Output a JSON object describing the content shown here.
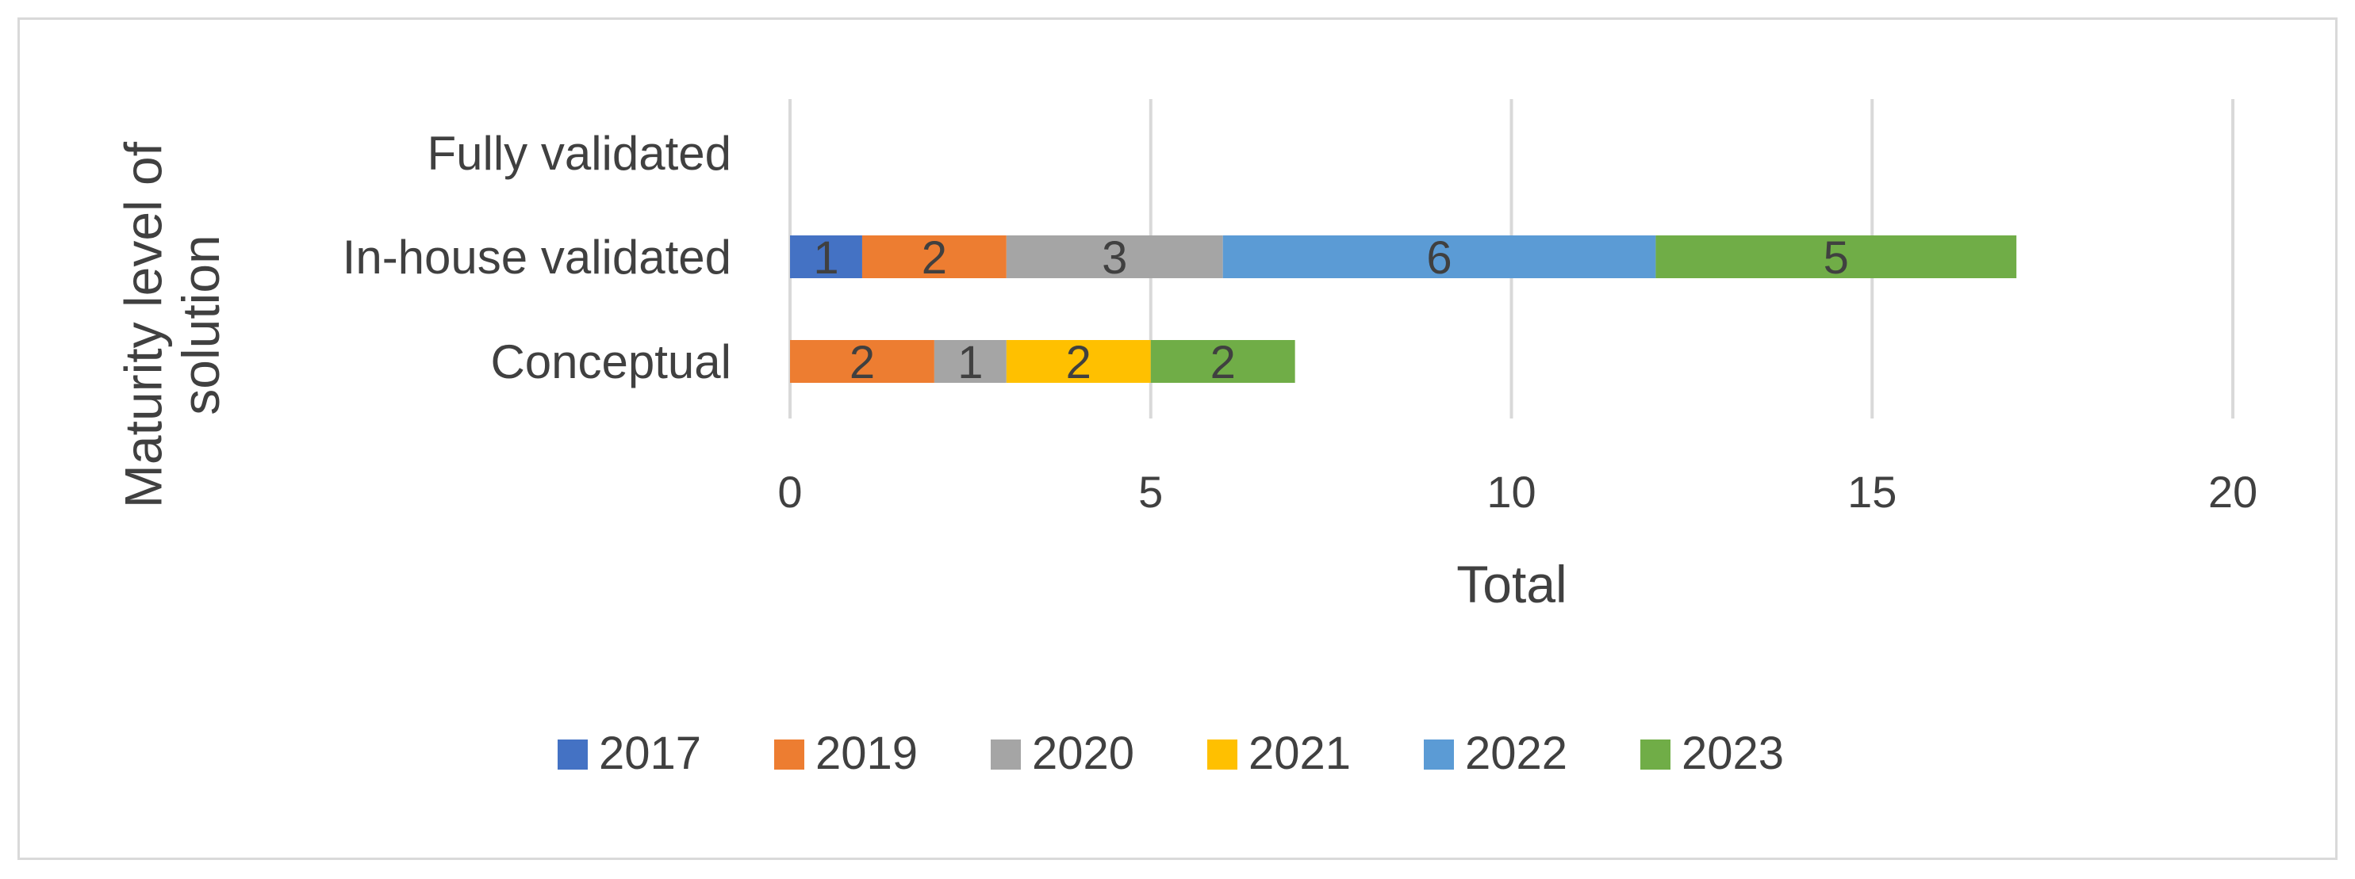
{
  "chart_data": {
    "type": "bar",
    "orientation": "horizontal",
    "stacked": true,
    "title": "",
    "xlabel": "Total",
    "ylabel": "Maturity level of solution",
    "xlim": [
      0,
      20
    ],
    "xticks": [
      0,
      5,
      10,
      15,
      20
    ],
    "grid": true,
    "legend_position": "bottom",
    "categories": [
      "Fully validated",
      "In-house validated",
      "Conceptual"
    ],
    "series": [
      {
        "name": "2017",
        "color": "#4472c4",
        "values": [
          0,
          1,
          0
        ]
      },
      {
        "name": "2019",
        "color": "#ed7d31",
        "values": [
          0,
          2,
          2
        ]
      },
      {
        "name": "2020",
        "color": "#a5a5a5",
        "values": [
          0,
          3,
          1
        ]
      },
      {
        "name": "2021",
        "color": "#ffc000",
        "values": [
          0,
          0,
          2
        ]
      },
      {
        "name": "2022",
        "color": "#5b9bd5",
        "values": [
          0,
          6,
          0
        ]
      },
      {
        "name": "2023",
        "color": "#70ad47",
        "values": [
          0,
          5,
          2
        ]
      }
    ]
  }
}
